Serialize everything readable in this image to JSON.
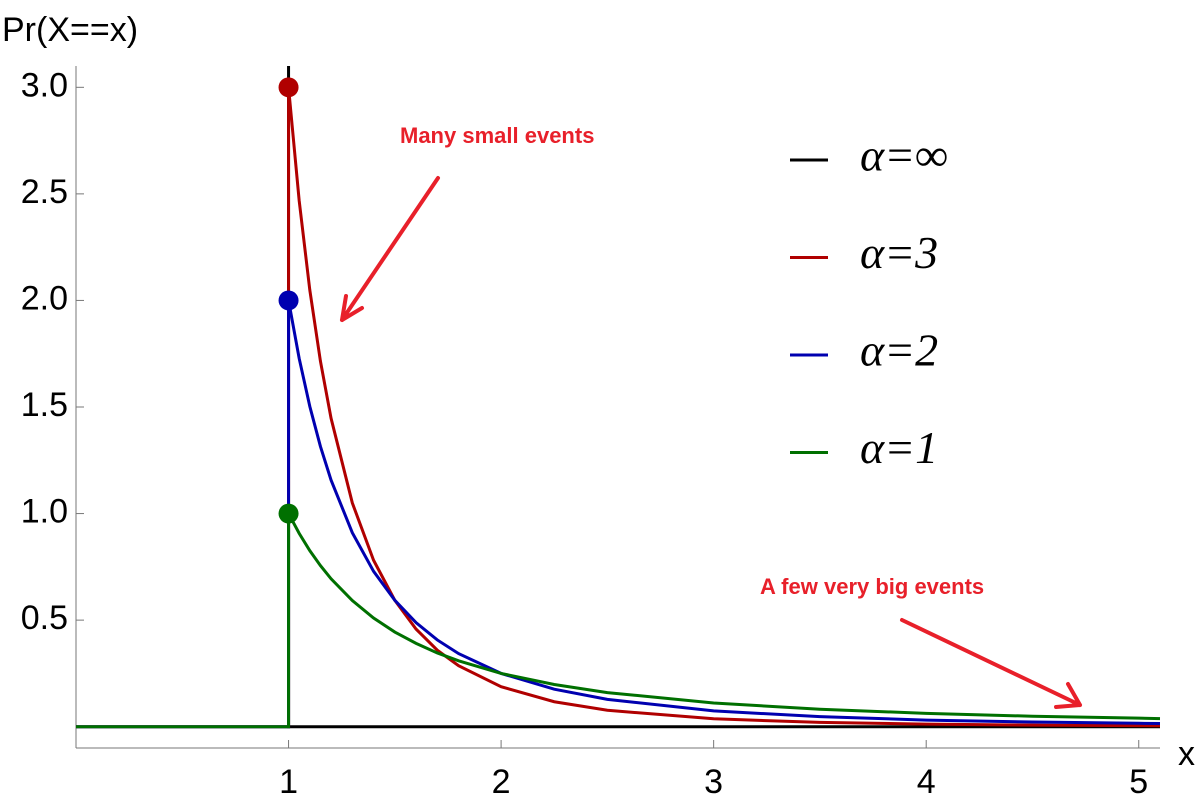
{
  "chart_data": {
    "type": "line",
    "y_label": "Pr(X==x)",
    "x_label": "x",
    "annotations": [
      "Many small events",
      "A few very big events"
    ],
    "x": [
      0,
      1,
      1,
      1.05,
      1.1,
      1.15,
      1.2,
      1.3,
      1.4,
      1.5,
      1.6,
      1.7,
      1.8,
      2,
      2.25,
      2.5,
      3,
      3.5,
      4,
      4.5,
      5,
      5.1
    ],
    "series": [
      {
        "name": "α=∞",
        "color": "#000000",
        "x": [
          1,
          1,
          5.1
        ],
        "values": [
          3.1,
          0,
          0
        ]
      },
      {
        "name": "α=3",
        "color": "#b00000",
        "values": [
          0,
          0,
          3,
          2.468,
          2.049,
          1.715,
          1.447,
          1.05,
          0.781,
          0.593,
          0.458,
          0.359,
          0.286,
          0.1875,
          0.117,
          0.077,
          0.037,
          0.02,
          0.012,
          0.0073,
          0.0048,
          0.0044
        ]
      },
      {
        "name": "α=2",
        "color": "#0000b0",
        "values": [
          0,
          0,
          2,
          1.728,
          1.503,
          1.315,
          1.157,
          0.91,
          0.729,
          0.593,
          0.488,
          0.407,
          0.343,
          0.25,
          0.176,
          0.128,
          0.074,
          0.047,
          0.031,
          0.022,
          0.016,
          0.015
        ]
      },
      {
        "name": "α=1",
        "color": "#007000",
        "values": [
          0,
          0,
          1,
          0.907,
          0.826,
          0.756,
          0.694,
          0.592,
          0.51,
          0.444,
          0.391,
          0.346,
          0.309,
          0.25,
          0.198,
          0.16,
          0.111,
          0.082,
          0.0625,
          0.049,
          0.04,
          0.038
        ]
      }
    ],
    "xlim": [
      0,
      5.1
    ],
    "ylim": [
      -0.1,
      3.1
    ],
    "xticks": [
      1,
      2,
      3,
      4,
      5
    ],
    "yticks": [
      0.5,
      {
        "value": 1,
        "label": "1.0"
      },
      1.5,
      {
        "value": 2,
        "label": "2.0"
      },
      2.5,
      {
        "value": 3,
        "label": "3.0"
      }
    ]
  }
}
